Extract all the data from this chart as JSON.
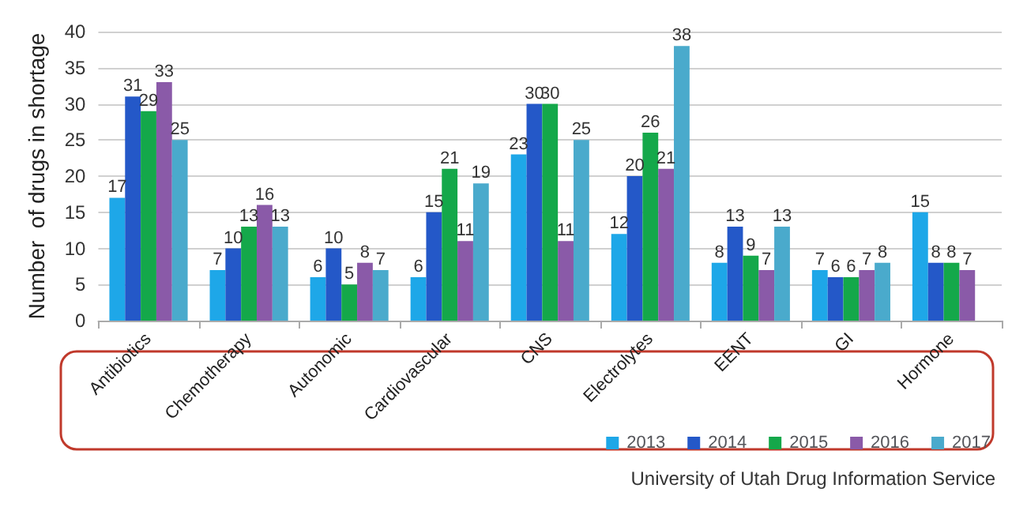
{
  "chart_data": {
    "type": "bar",
    "ylabel": "Number  of drugs in shortage",
    "categories": [
      "Antibiotics",
      "Chemotherapy",
      "Autonomic",
      "Cardiovascular",
      "CNS",
      "Electrolytes",
      "EENT",
      "GI",
      "Hormone"
    ],
    "series": [
      {
        "name": "2013",
        "color": "#1ea7e8",
        "values": [
          17,
          7,
          6,
          6,
          23,
          12,
          8,
          7,
          15
        ]
      },
      {
        "name": "2014",
        "color": "#2458c8",
        "values": [
          31,
          10,
          10,
          15,
          30,
          20,
          13,
          6,
          8
        ]
      },
      {
        "name": "2015",
        "color": "#14a84a",
        "values": [
          29,
          13,
          5,
          21,
          30,
          26,
          9,
          6,
          8
        ]
      },
      {
        "name": "2016",
        "color": "#8a5aa8",
        "values": [
          33,
          16,
          8,
          11,
          11,
          21,
          7,
          7,
          7
        ]
      },
      {
        "name": "2017",
        "color": "#4aaacc",
        "values": [
          25,
          13,
          7,
          19,
          25,
          38,
          13,
          8,
          null
        ]
      }
    ],
    "ylim": [
      0,
      40
    ],
    "yticks": [
      0,
      5,
      10,
      15,
      20,
      25,
      30,
      35,
      40
    ],
    "grid": "y",
    "legend": "bottom right",
    "data_labels": true,
    "annotations": [
      "University of Utah Drug Information Service"
    ]
  }
}
